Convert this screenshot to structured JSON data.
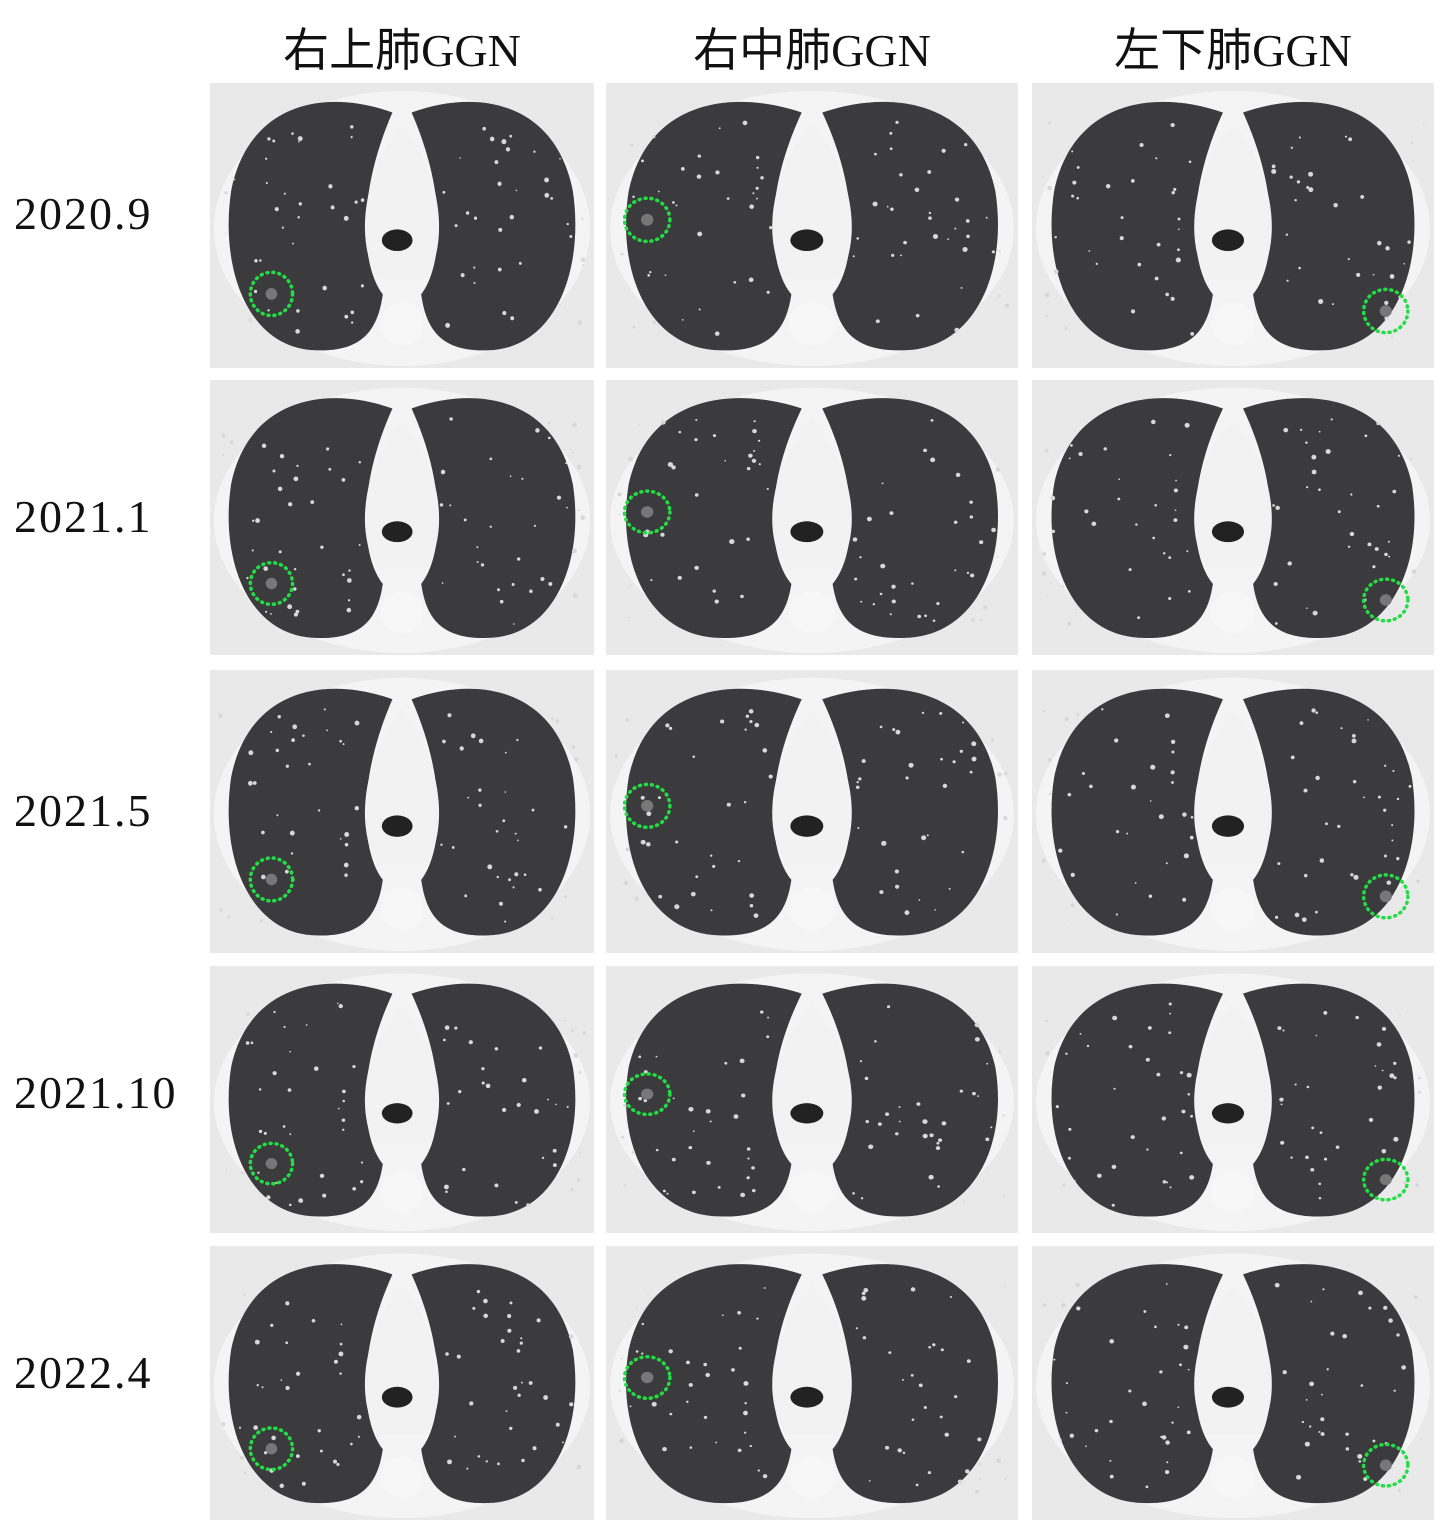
{
  "columns": [
    "右上肺GGN",
    "右中肺GGN",
    "左下肺GGN"
  ],
  "rows": [
    "2020.9",
    "2021.1",
    "2021.5",
    "2021.10",
    "2022.4"
  ]
}
